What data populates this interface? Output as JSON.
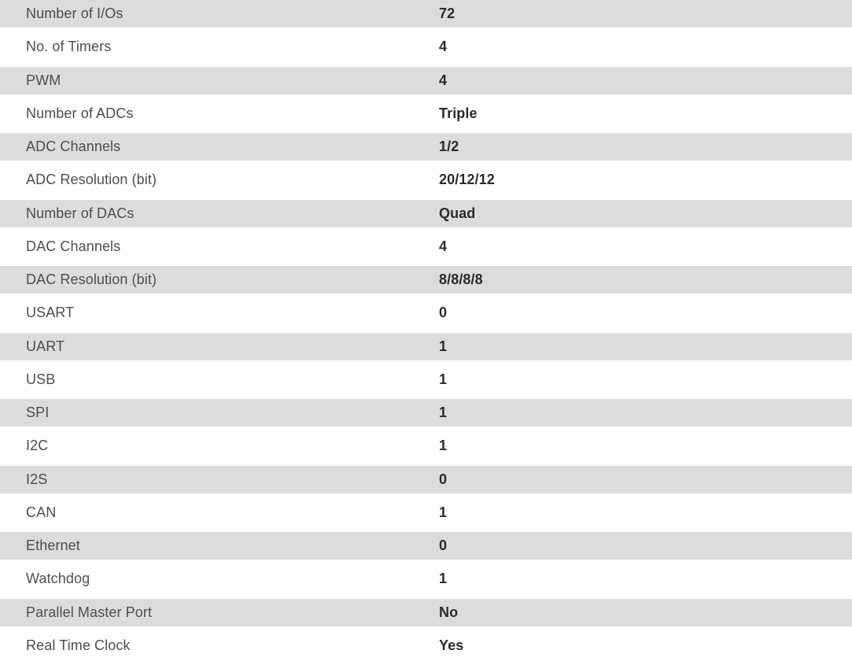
{
  "table": {
    "rows": [
      {
        "label": "Number of I/Os",
        "value": "72"
      },
      {
        "label": "No. of Timers",
        "value": "4"
      },
      {
        "label": "PWM",
        "value": "4"
      },
      {
        "label": "Number of ADCs",
        "value": "Triple"
      },
      {
        "label": "ADC Channels",
        "value": "1/2"
      },
      {
        "label": "ADC Resolution (bit)",
        "value": "20/12/12"
      },
      {
        "label": "Number of DACs",
        "value": "Quad"
      },
      {
        "label": "DAC Channels",
        "value": "4"
      },
      {
        "label": "DAC Resolution (bit)",
        "value": "8/8/8/8"
      },
      {
        "label": "USART",
        "value": "0"
      },
      {
        "label": "UART",
        "value": "1"
      },
      {
        "label": "USB",
        "value": "1"
      },
      {
        "label": "SPI",
        "value": "1"
      },
      {
        "label": "I2C",
        "value": "1"
      },
      {
        "label": "I2S",
        "value": "0"
      },
      {
        "label": "CAN",
        "value": "1"
      },
      {
        "label": "Ethernet",
        "value": "0"
      },
      {
        "label": "Watchdog",
        "value": "1"
      },
      {
        "label": "Parallel Master Port",
        "value": "No"
      },
      {
        "label": "Real Time Clock",
        "value": "Yes"
      }
    ]
  },
  "colors": {
    "row_shaded_bg": "#dcdcdc",
    "row_plain_bg": "#ffffff",
    "label_text": "#4d4d4d",
    "value_text": "#2b2b2b"
  }
}
